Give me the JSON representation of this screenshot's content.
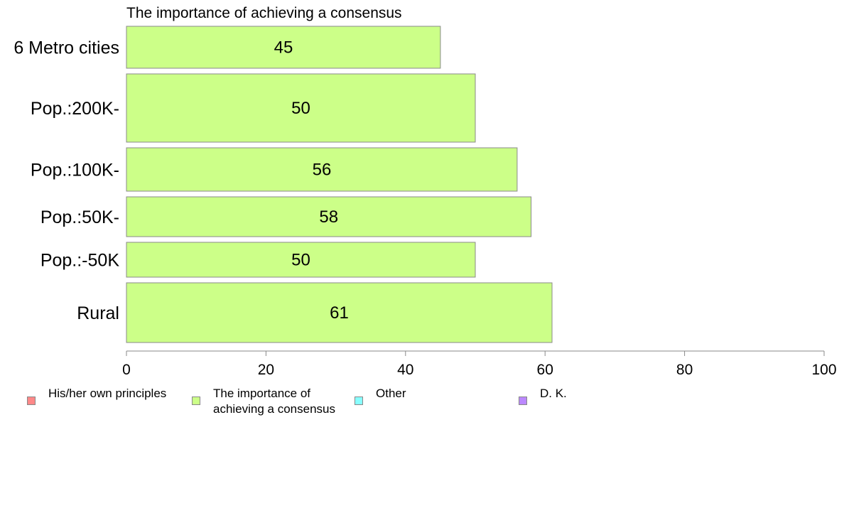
{
  "chart_data": {
    "type": "bar",
    "orientation": "horizontal",
    "title": "The importance of achieving a consensus",
    "categories": [
      "6 Metro cities",
      "Pop.:200K-",
      "Pop.:100K-",
      "Pop.:50K-",
      "Pop.:-50K",
      "Rural"
    ],
    "values": [
      45,
      50,
      56,
      58,
      50,
      61
    ],
    "xlim": [
      0,
      100
    ],
    "xticks": [
      "0",
      "20",
      "40",
      "60",
      "80",
      "100"
    ],
    "xlabel": "",
    "ylabel": "",
    "grid": false,
    "bar_color": "#ccff88",
    "legend_placement": "bottom"
  },
  "legend": {
    "items": [
      {
        "label": "His/her own principles",
        "color": "#ff8888"
      },
      {
        "label": "The importance of\nachieving a consensus",
        "color": "#ccff88"
      },
      {
        "label": "Other",
        "color": "#88ffff"
      },
      {
        "label": "D. K.",
        "color": "#bb88ff"
      }
    ]
  }
}
